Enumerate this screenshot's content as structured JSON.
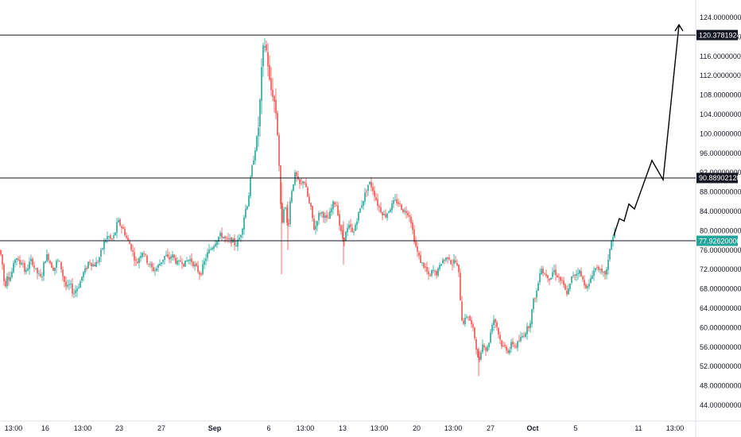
{
  "chart_data": {
    "type": "candlestick",
    "y_axis": {
      "min": 44,
      "max": 124,
      "step": 4,
      "tick_labels": [
        "124.00000000",
        "120.00000000",
        "116.00000000",
        "112.00000000",
        "108.00000000",
        "104.00000000",
        "100.00000000",
        "96.00000000",
        "92.00000000",
        "88.00000000",
        "84.00000000",
        "80.00000000",
        "76.00000000",
        "72.00000000",
        "68.00000000",
        "64.00000000",
        "60.00000000",
        "56.00000000",
        "52.00000000",
        "48.00000000",
        "44.00000000"
      ]
    },
    "x_axis": {
      "tick_labels": [
        {
          "label": "13:00",
          "bold": false
        },
        {
          "label": "16",
          "bold": false
        },
        {
          "label": "13:00",
          "bold": false
        },
        {
          "label": "23",
          "bold": false
        },
        {
          "label": "27",
          "bold": false
        },
        {
          "label": "Sep",
          "bold": true
        },
        {
          "label": "6",
          "bold": false
        },
        {
          "label": "13:00",
          "bold": false
        },
        {
          "label": "13",
          "bold": false
        },
        {
          "label": "13:00",
          "bold": false
        },
        {
          "label": "20",
          "bold": false
        },
        {
          "label": "13:00",
          "bold": false
        },
        {
          "label": "27",
          "bold": false
        },
        {
          "label": "Oct",
          "bold": true
        },
        {
          "label": "5",
          "bold": false
        },
        {
          "label": "11",
          "bold": false
        },
        {
          "label": "13:00",
          "bold": false
        }
      ]
    },
    "horizontal_lines": [
      {
        "value": 120.3781924,
        "label": "120.37819240",
        "tag_color": "#131722"
      },
      {
        "value": 90.8890212,
        "label": "90.88902120",
        "tag_color": "#131722"
      },
      {
        "value": 77.9262,
        "label": "77.92620000",
        "tag_color": "#26a69a"
      }
    ],
    "price_path": [
      [
        0,
        76
      ],
      [
        3,
        73
      ],
      [
        6,
        68
      ],
      [
        9,
        71
      ],
      [
        12,
        70
      ],
      [
        16,
        72
      ],
      [
        20,
        75
      ],
      [
        24,
        73
      ],
      [
        28,
        74
      ],
      [
        32,
        71
      ],
      [
        36,
        73
      ],
      [
        40,
        74
      ],
      [
        44,
        72
      ],
      [
        48,
        71
      ],
      [
        52,
        70
      ],
      [
        56,
        74
      ],
      [
        60,
        75
      ],
      [
        64,
        73
      ],
      [
        68,
        72
      ],
      [
        72,
        74
      ],
      [
        76,
        73
      ],
      [
        80,
        70
      ],
      [
        84,
        68
      ],
      [
        88,
        69
      ],
      [
        92,
        67
      ],
      [
        96,
        68
      ],
      [
        100,
        69
      ],
      [
        104,
        71
      ],
      [
        108,
        72
      ],
      [
        112,
        74
      ],
      [
        116,
        73
      ],
      [
        120,
        73
      ],
      [
        124,
        74
      ],
      [
        128,
        76
      ],
      [
        132,
        78
      ],
      [
        136,
        79
      ],
      [
        140,
        78
      ],
      [
        144,
        79
      ],
      [
        148,
        82
      ],
      [
        152,
        81
      ],
      [
        156,
        80
      ],
      [
        160,
        78
      ],
      [
        164,
        77
      ],
      [
        168,
        75
      ],
      [
        172,
        73
      ],
      [
        176,
        75
      ],
      [
        180,
        76
      ],
      [
        184,
        74
      ],
      [
        188,
        73
      ],
      [
        192,
        72
      ],
      [
        196,
        72
      ],
      [
        200,
        73
      ],
      [
        204,
        74
      ],
      [
        208,
        75
      ],
      [
        212,
        74
      ],
      [
        216,
        75
      ],
      [
        220,
        74
      ],
      [
        224,
        73
      ],
      [
        228,
        74
      ],
      [
        232,
        73
      ],
      [
        236,
        74
      ],
      [
        240,
        74
      ],
      [
        244,
        73
      ],
      [
        248,
        72
      ],
      [
        252,
        71
      ],
      [
        256,
        73
      ],
      [
        260,
        75
      ],
      [
        264,
        76
      ],
      [
        268,
        77
      ],
      [
        272,
        78
      ],
      [
        276,
        79
      ],
      [
        280,
        79
      ],
      [
        284,
        78
      ],
      [
        288,
        78
      ],
      [
        292,
        78
      ],
      [
        296,
        77
      ],
      [
        300,
        78
      ],
      [
        304,
        80
      ],
      [
        308,
        84
      ],
      [
        312,
        86
      ],
      [
        316,
        92
      ],
      [
        320,
        96
      ],
      [
        324,
        100
      ],
      [
        326,
        103
      ],
      [
        328,
        110
      ],
      [
        330,
        115
      ],
      [
        332,
        119
      ],
      [
        334,
        118
      ],
      [
        336,
        116
      ],
      [
        338,
        113
      ],
      [
        340,
        108
      ],
      [
        342,
        110
      ],
      [
        344,
        107
      ],
      [
        346,
        106
      ],
      [
        348,
        103
      ],
      [
        350,
        97
      ],
      [
        352,
        90
      ],
      [
        354,
        80
      ],
      [
        356,
        84
      ],
      [
        358,
        86
      ],
      [
        360,
        83
      ],
      [
        362,
        80
      ],
      [
        364,
        84
      ],
      [
        366,
        88
      ],
      [
        368,
        89
      ],
      [
        370,
        91
      ],
      [
        372,
        92
      ],
      [
        374,
        90
      ],
      [
        376,
        90
      ],
      [
        378,
        89
      ],
      [
        380,
        90
      ],
      [
        382,
        91
      ],
      [
        384,
        89
      ],
      [
        386,
        88
      ],
      [
        388,
        86
      ],
      [
        390,
        85
      ],
      [
        392,
        84
      ],
      [
        394,
        81
      ],
      [
        396,
        80
      ],
      [
        398,
        82
      ],
      [
        400,
        83
      ],
      [
        404,
        84
      ],
      [
        408,
        83
      ],
      [
        412,
        82
      ],
      [
        416,
        84
      ],
      [
        420,
        86
      ],
      [
        424,
        85
      ],
      [
        428,
        80
      ],
      [
        432,
        78
      ],
      [
        436,
        80
      ],
      [
        440,
        81
      ],
      [
        444,
        79
      ],
      [
        448,
        82
      ],
      [
        452,
        84
      ],
      [
        456,
        86
      ],
      [
        460,
        88
      ],
      [
        464,
        90
      ],
      [
        468,
        89
      ],
      [
        472,
        87
      ],
      [
        476,
        85
      ],
      [
        480,
        84
      ],
      [
        484,
        83
      ],
      [
        488,
        84
      ],
      [
        492,
        85
      ],
      [
        496,
        86
      ],
      [
        500,
        86
      ],
      [
        504,
        85
      ],
      [
        508,
        84
      ],
      [
        512,
        84
      ],
      [
        516,
        83
      ],
      [
        520,
        79
      ],
      [
        524,
        76
      ],
      [
        528,
        74
      ],
      [
        532,
        73
      ],
      [
        536,
        72
      ],
      [
        540,
        70
      ],
      [
        544,
        72
      ],
      [
        548,
        71
      ],
      [
        552,
        72
      ],
      [
        556,
        74
      ],
      [
        560,
        74
      ],
      [
        564,
        75
      ],
      [
        568,
        73
      ],
      [
        572,
        74
      ],
      [
        576,
        72
      ],
      [
        578,
        70
      ],
      [
        580,
        62
      ],
      [
        584,
        61
      ],
      [
        588,
        63
      ],
      [
        592,
        61
      ],
      [
        596,
        59
      ],
      [
        600,
        55
      ],
      [
        602,
        52
      ],
      [
        604,
        55
      ],
      [
        608,
        57
      ],
      [
        612,
        55
      ],
      [
        616,
        58
      ],
      [
        620,
        62
      ],
      [
        624,
        61
      ],
      [
        628,
        58
      ],
      [
        632,
        56
      ],
      [
        636,
        56
      ],
      [
        640,
        55
      ],
      [
        644,
        57
      ],
      [
        648,
        56
      ],
      [
        652,
        57
      ],
      [
        656,
        58
      ],
      [
        660,
        59
      ],
      [
        664,
        60
      ],
      [
        668,
        62
      ],
      [
        670,
        65
      ],
      [
        672,
        66
      ],
      [
        676,
        68
      ],
      [
        680,
        73
      ],
      [
        684,
        71
      ],
      [
        688,
        71
      ],
      [
        692,
        70
      ],
      [
        696,
        72
      ],
      [
        700,
        71
      ],
      [
        704,
        70
      ],
      [
        708,
        69
      ],
      [
        712,
        67
      ],
      [
        716,
        68
      ],
      [
        720,
        71
      ],
      [
        724,
        71
      ],
      [
        728,
        72
      ],
      [
        732,
        70
      ],
      [
        736,
        69
      ],
      [
        740,
        68
      ],
      [
        744,
        71
      ],
      [
        748,
        72
      ],
      [
        752,
        73
      ],
      [
        756,
        71
      ],
      [
        760,
        71
      ],
      [
        764,
        72
      ],
      [
        766,
        75
      ],
      [
        768,
        78
      ],
      [
        770,
        78
      ],
      [
        772,
        79
      ],
      [
        774,
        80
      ]
    ],
    "projection_path": [
      [
        772,
        79
      ],
      [
        779,
        82.5
      ],
      [
        785,
        82
      ],
      [
        791,
        85.5
      ],
      [
        798,
        84.5
      ],
      [
        820,
        94.5
      ],
      [
        834,
        90.5
      ],
      [
        854,
        122.5
      ]
    ]
  }
}
